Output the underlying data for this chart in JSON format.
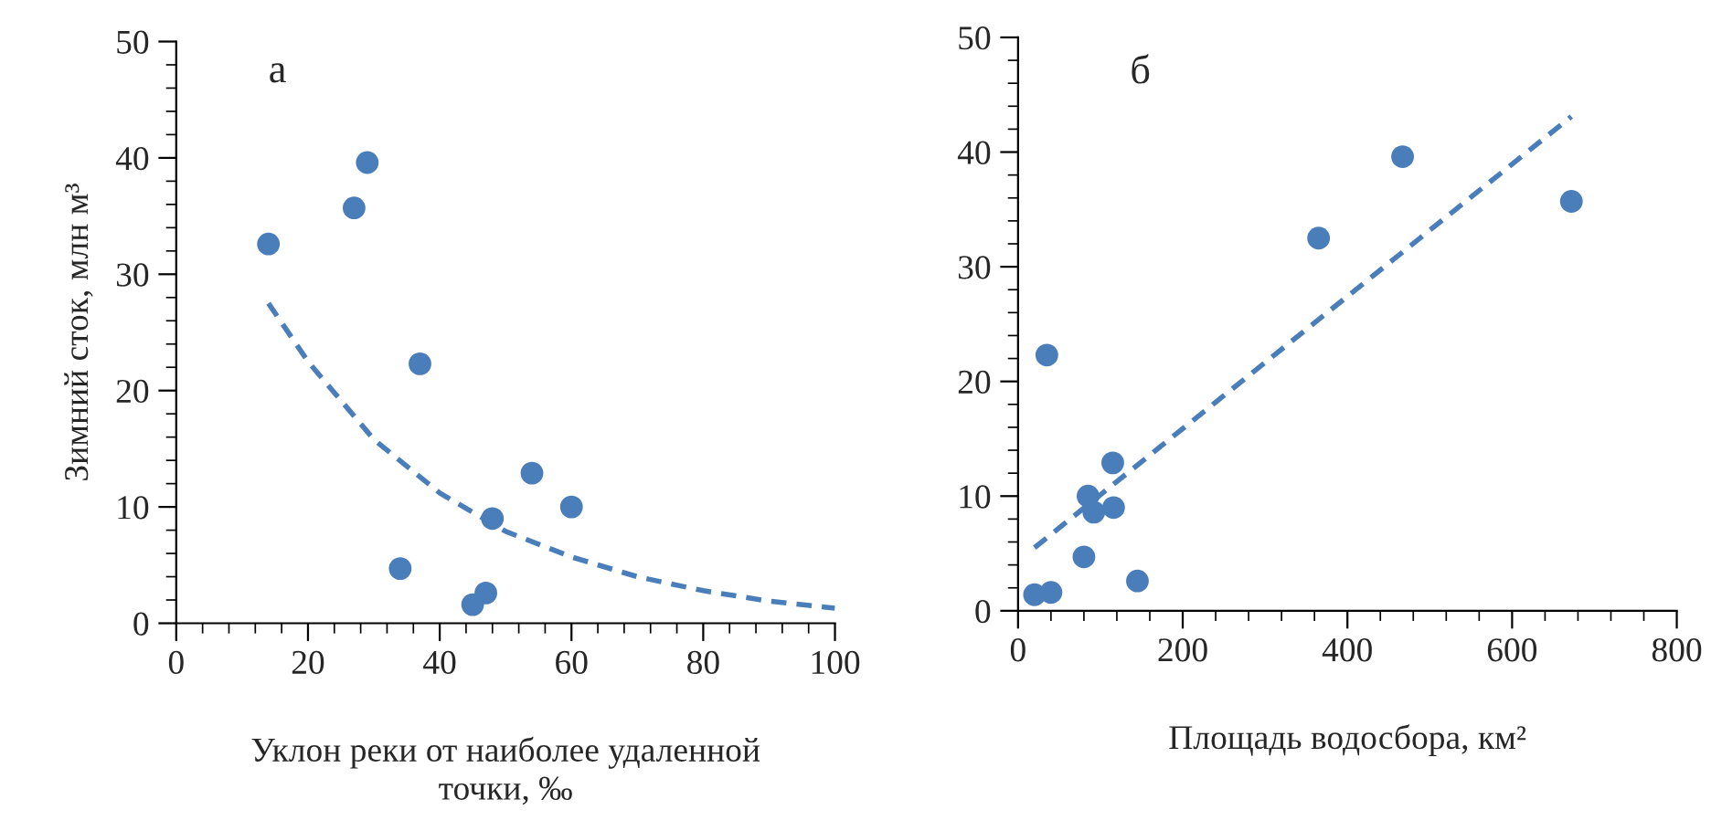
{
  "chart_data": [
    {
      "type": "scatter",
      "ylabel": "Зимний сток, млн м³",
      "xlabel": "Уклон реки от наиболее удаленной\nточки, ‰",
      "annotations": [
        "а"
      ],
      "xlim": [
        0,
        100
      ],
      "xticks": [
        0,
        20,
        40,
        60,
        80,
        100
      ],
      "ylim": [
        0,
        50
      ],
      "yticks": [
        0,
        10,
        20,
        30,
        40,
        50
      ],
      "grid": false,
      "legend": false,
      "series": [
        {
          "color": "#4a7ebb",
          "marker": "circle",
          "x": [
            14,
            27,
            29,
            37,
            34,
            45,
            47,
            48,
            54,
            60
          ],
          "values": [
            32.6,
            35.7,
            39.6,
            22.3,
            4.7,
            1.6,
            2.6,
            9.0,
            12.9,
            10.0
          ]
        },
        {
          "type": "line",
          "color": "#4a7ebb",
          "line_style": "dashed",
          "marker": "none",
          "x": [
            14,
            20,
            30,
            40,
            50,
            60,
            70,
            80,
            90,
            100
          ],
          "values": [
            27.5,
            22.5,
            15.8,
            11.2,
            7.9,
            5.7,
            4.0,
            2.8,
            1.9,
            1.3
          ]
        }
      ]
    },
    {
      "type": "scatter",
      "xlabel": "Площадь водосбора, км²",
      "annotations": [
        "б"
      ],
      "xlim": [
        0,
        800
      ],
      "xticks": [
        0,
        200,
        400,
        600,
        800
      ],
      "ylim": [
        0,
        50
      ],
      "yticks": [
        0,
        10,
        20,
        30,
        40,
        50
      ],
      "grid": false,
      "legend": false,
      "series": [
        {
          "color": "#4a7ebb",
          "marker": "circle",
          "x": [
            20,
            40,
            35,
            80,
            85,
            92,
            115,
            116,
            145,
            365,
            467,
            672
          ],
          "values": [
            1.4,
            1.6,
            22.3,
            4.7,
            10.0,
            8.6,
            12.9,
            9.0,
            2.6,
            32.5,
            39.6,
            35.7
          ]
        },
        {
          "type": "line",
          "color": "#4a7ebb",
          "line_style": "dashed",
          "marker": "none",
          "x": [
            20,
            672
          ],
          "values": [
            5.5,
            43.1
          ]
        }
      ]
    }
  ]
}
